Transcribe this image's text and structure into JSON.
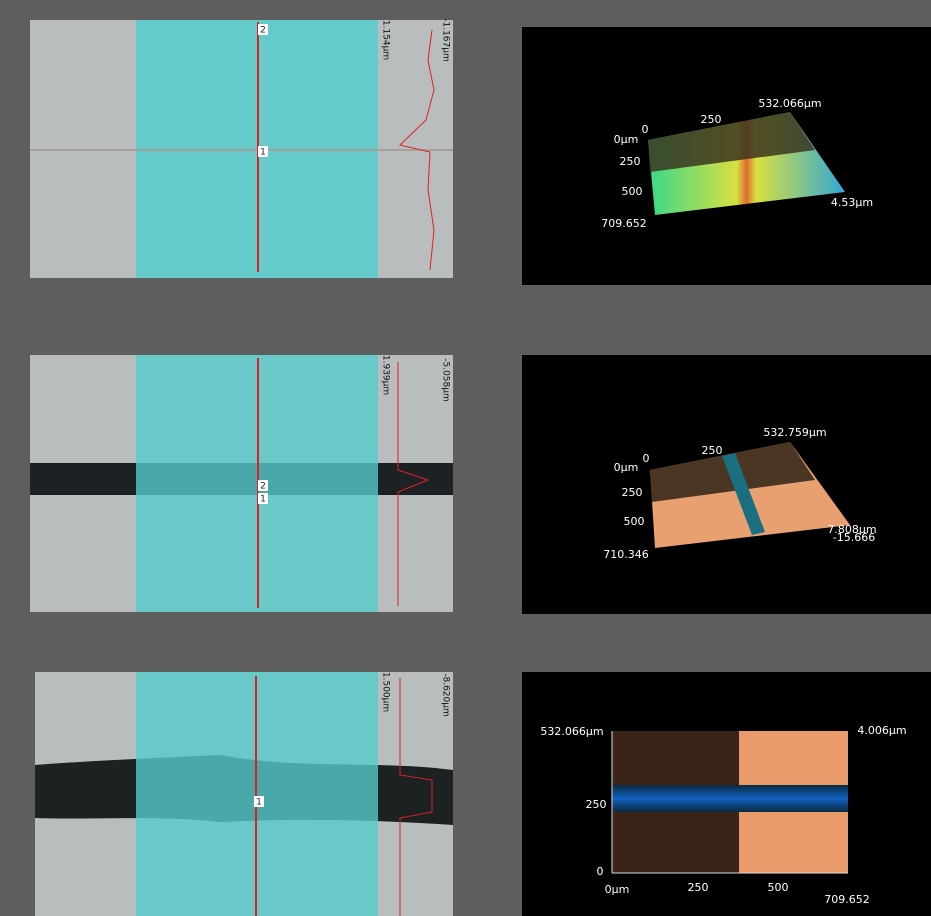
{
  "panels": [
    {
      "profile": {
        "markers": [
          "2",
          "1"
        ],
        "range_labels": [
          "1.154μm",
          "-1.167μm"
        ]
      },
      "view": {
        "width_label": "532.066μm",
        "x_mid": "250",
        "origin": "0μm",
        "y0": "0",
        "y1": "250",
        "y2": "500",
        "length_label": "709.652",
        "height_label": "4.53μm"
      }
    },
    {
      "profile": {
        "markers": [
          "2",
          "1"
        ],
        "range_labels": [
          "1.939μm",
          "-5.058μm"
        ]
      },
      "view": {
        "width_label": "532.759μm",
        "x_mid": "250",
        "origin": "0μm",
        "y0": "0",
        "y1": "250",
        "y2": "500",
        "length_label": "710.346",
        "height_label": "7.808μm",
        "depth_label": "-15.666"
      }
    },
    {
      "profile": {
        "markers": [
          "1"
        ],
        "range_labels": [
          "1.500μm",
          "-8.620μm"
        ]
      },
      "view": {
        "y_top": "532.066μm",
        "height_label": "4.006μm",
        "y_mid": "250",
        "y0": "0",
        "origin": "0μm",
        "x1": "250",
        "x2": "500",
        "x_end": "709.652"
      }
    }
  ]
}
